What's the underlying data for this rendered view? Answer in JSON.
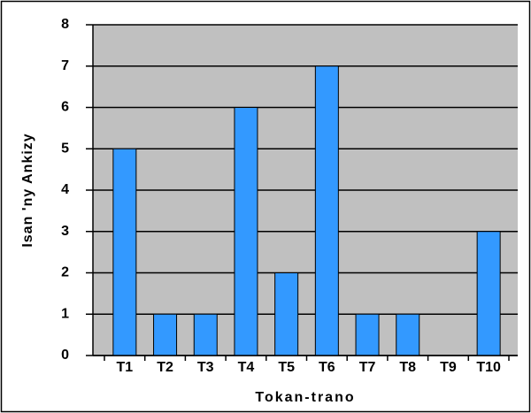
{
  "chart_data": {
    "type": "bar",
    "x_label": "Tokan-trano",
    "y_label": "Isan 'ny Ankizy",
    "categories": [
      "T1",
      "T2",
      "T3",
      "T4",
      "T5",
      "T6",
      "T7",
      "T8",
      "T9",
      "T10"
    ],
    "values": [
      5,
      1,
      1,
      6,
      2,
      7,
      1,
      1,
      0,
      3
    ],
    "color": "#3399ff",
    "ylim": [
      0,
      8
    ],
    "yticks": [
      0,
      1,
      2,
      3,
      4,
      5,
      6,
      7,
      8
    ],
    "grid": true
  }
}
